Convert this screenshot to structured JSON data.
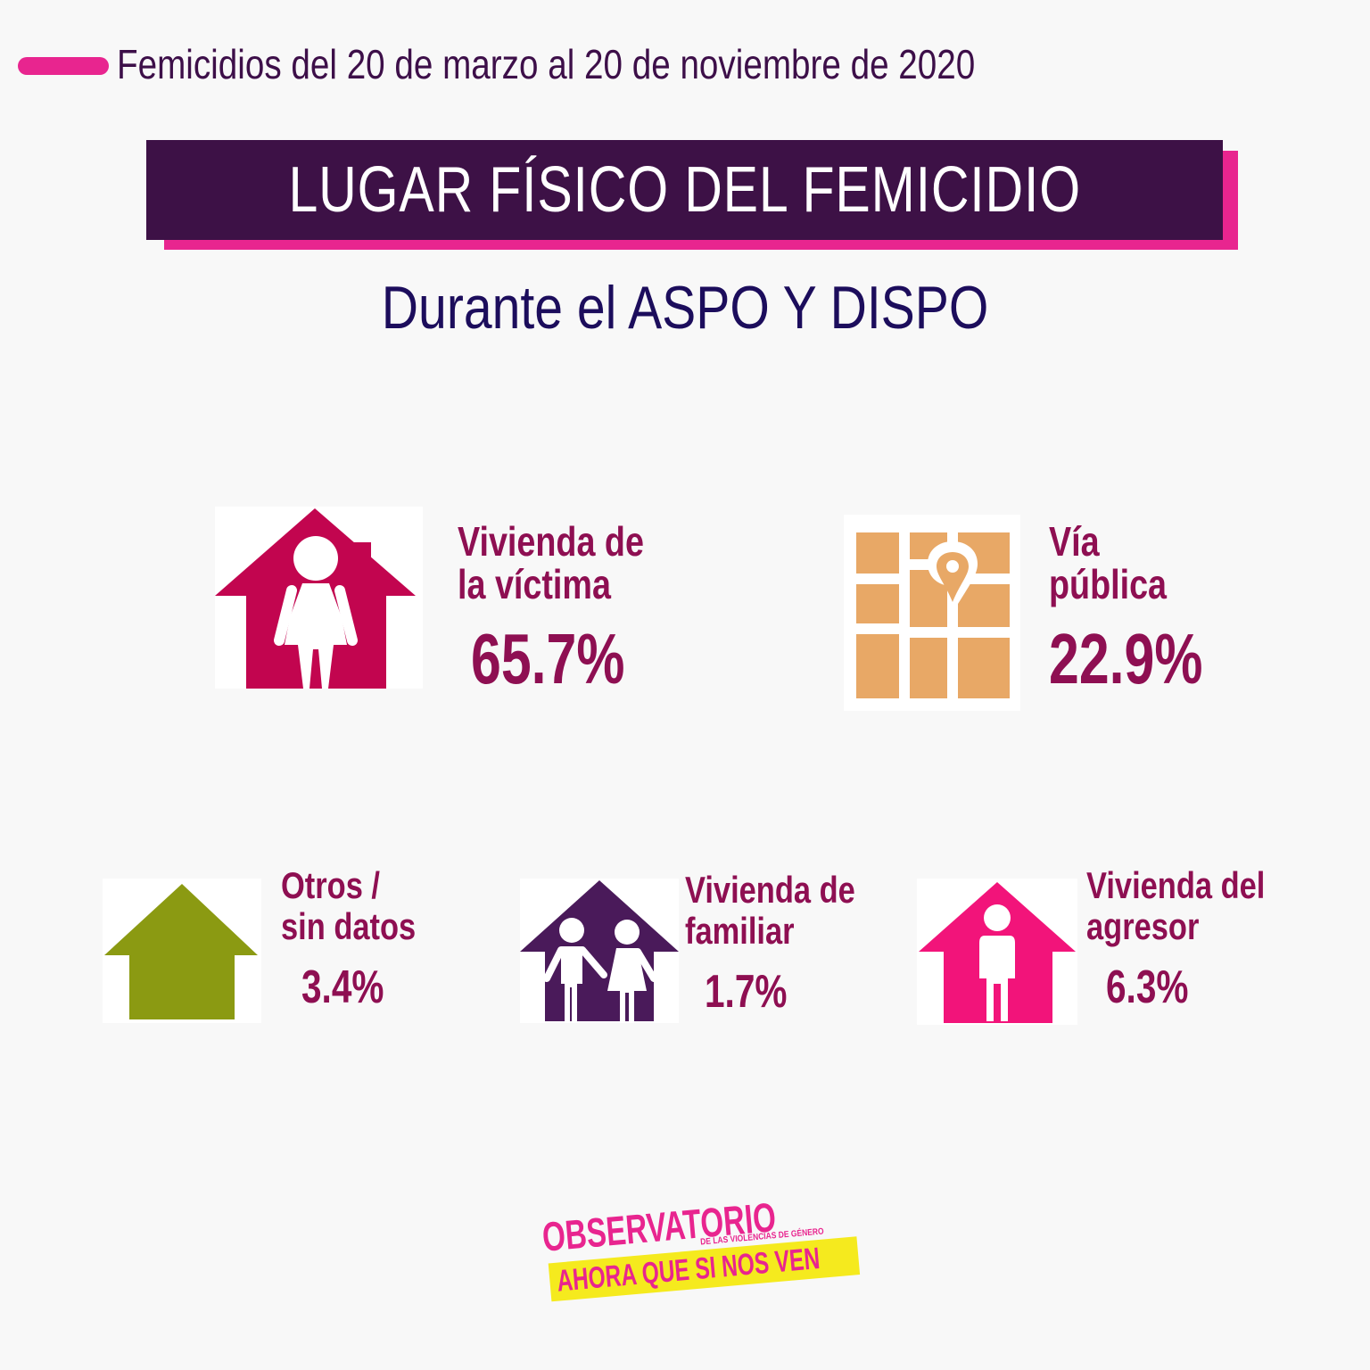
{
  "header": {
    "text": "Femicidios del 20 de marzo al 20 de noviembre de 2020",
    "accent_color": "#e8258f"
  },
  "title": {
    "text": "LUGAR FÍSICO DEL FEMICIDIO",
    "bg_color": "#3d1146",
    "shadow_color": "#e8258f"
  },
  "subtitle": {
    "text": "Durante el ASPO Y DISPO"
  },
  "items": [
    {
      "label_line1": "Vivienda de",
      "label_line2": "la víctima",
      "value": "65.7%",
      "percent": 65.7,
      "icon": "house-woman-icon",
      "icon_color": "#c2054f"
    },
    {
      "label_line1": "Vía",
      "label_line2": "pública",
      "value": "22.9%",
      "percent": 22.9,
      "icon": "map-pin-icon",
      "icon_color": "#e8a866"
    },
    {
      "label_line1": "Otros /",
      "label_line2": "sin datos",
      "value": "3.4%",
      "percent": 3.4,
      "icon": "house-icon",
      "icon_color": "#8b9a12"
    },
    {
      "label_line1": "Vivienda de",
      "label_line2": "familiar",
      "value": "1.7%",
      "percent": 1.7,
      "icon": "house-family-icon",
      "icon_color": "#4a1a5a"
    },
    {
      "label_line1": "Vivienda del",
      "label_line2": "agresor",
      "value": "6.3%",
      "percent": 6.3,
      "icon": "house-man-icon",
      "icon_color": "#f2147a"
    }
  ],
  "logo": {
    "line1": "OBSERVATORIO",
    "line2": "DE LAS VIOLENCIAS DE GÉNERO",
    "line3": "AHORA QUE SI NOS VEN"
  }
}
